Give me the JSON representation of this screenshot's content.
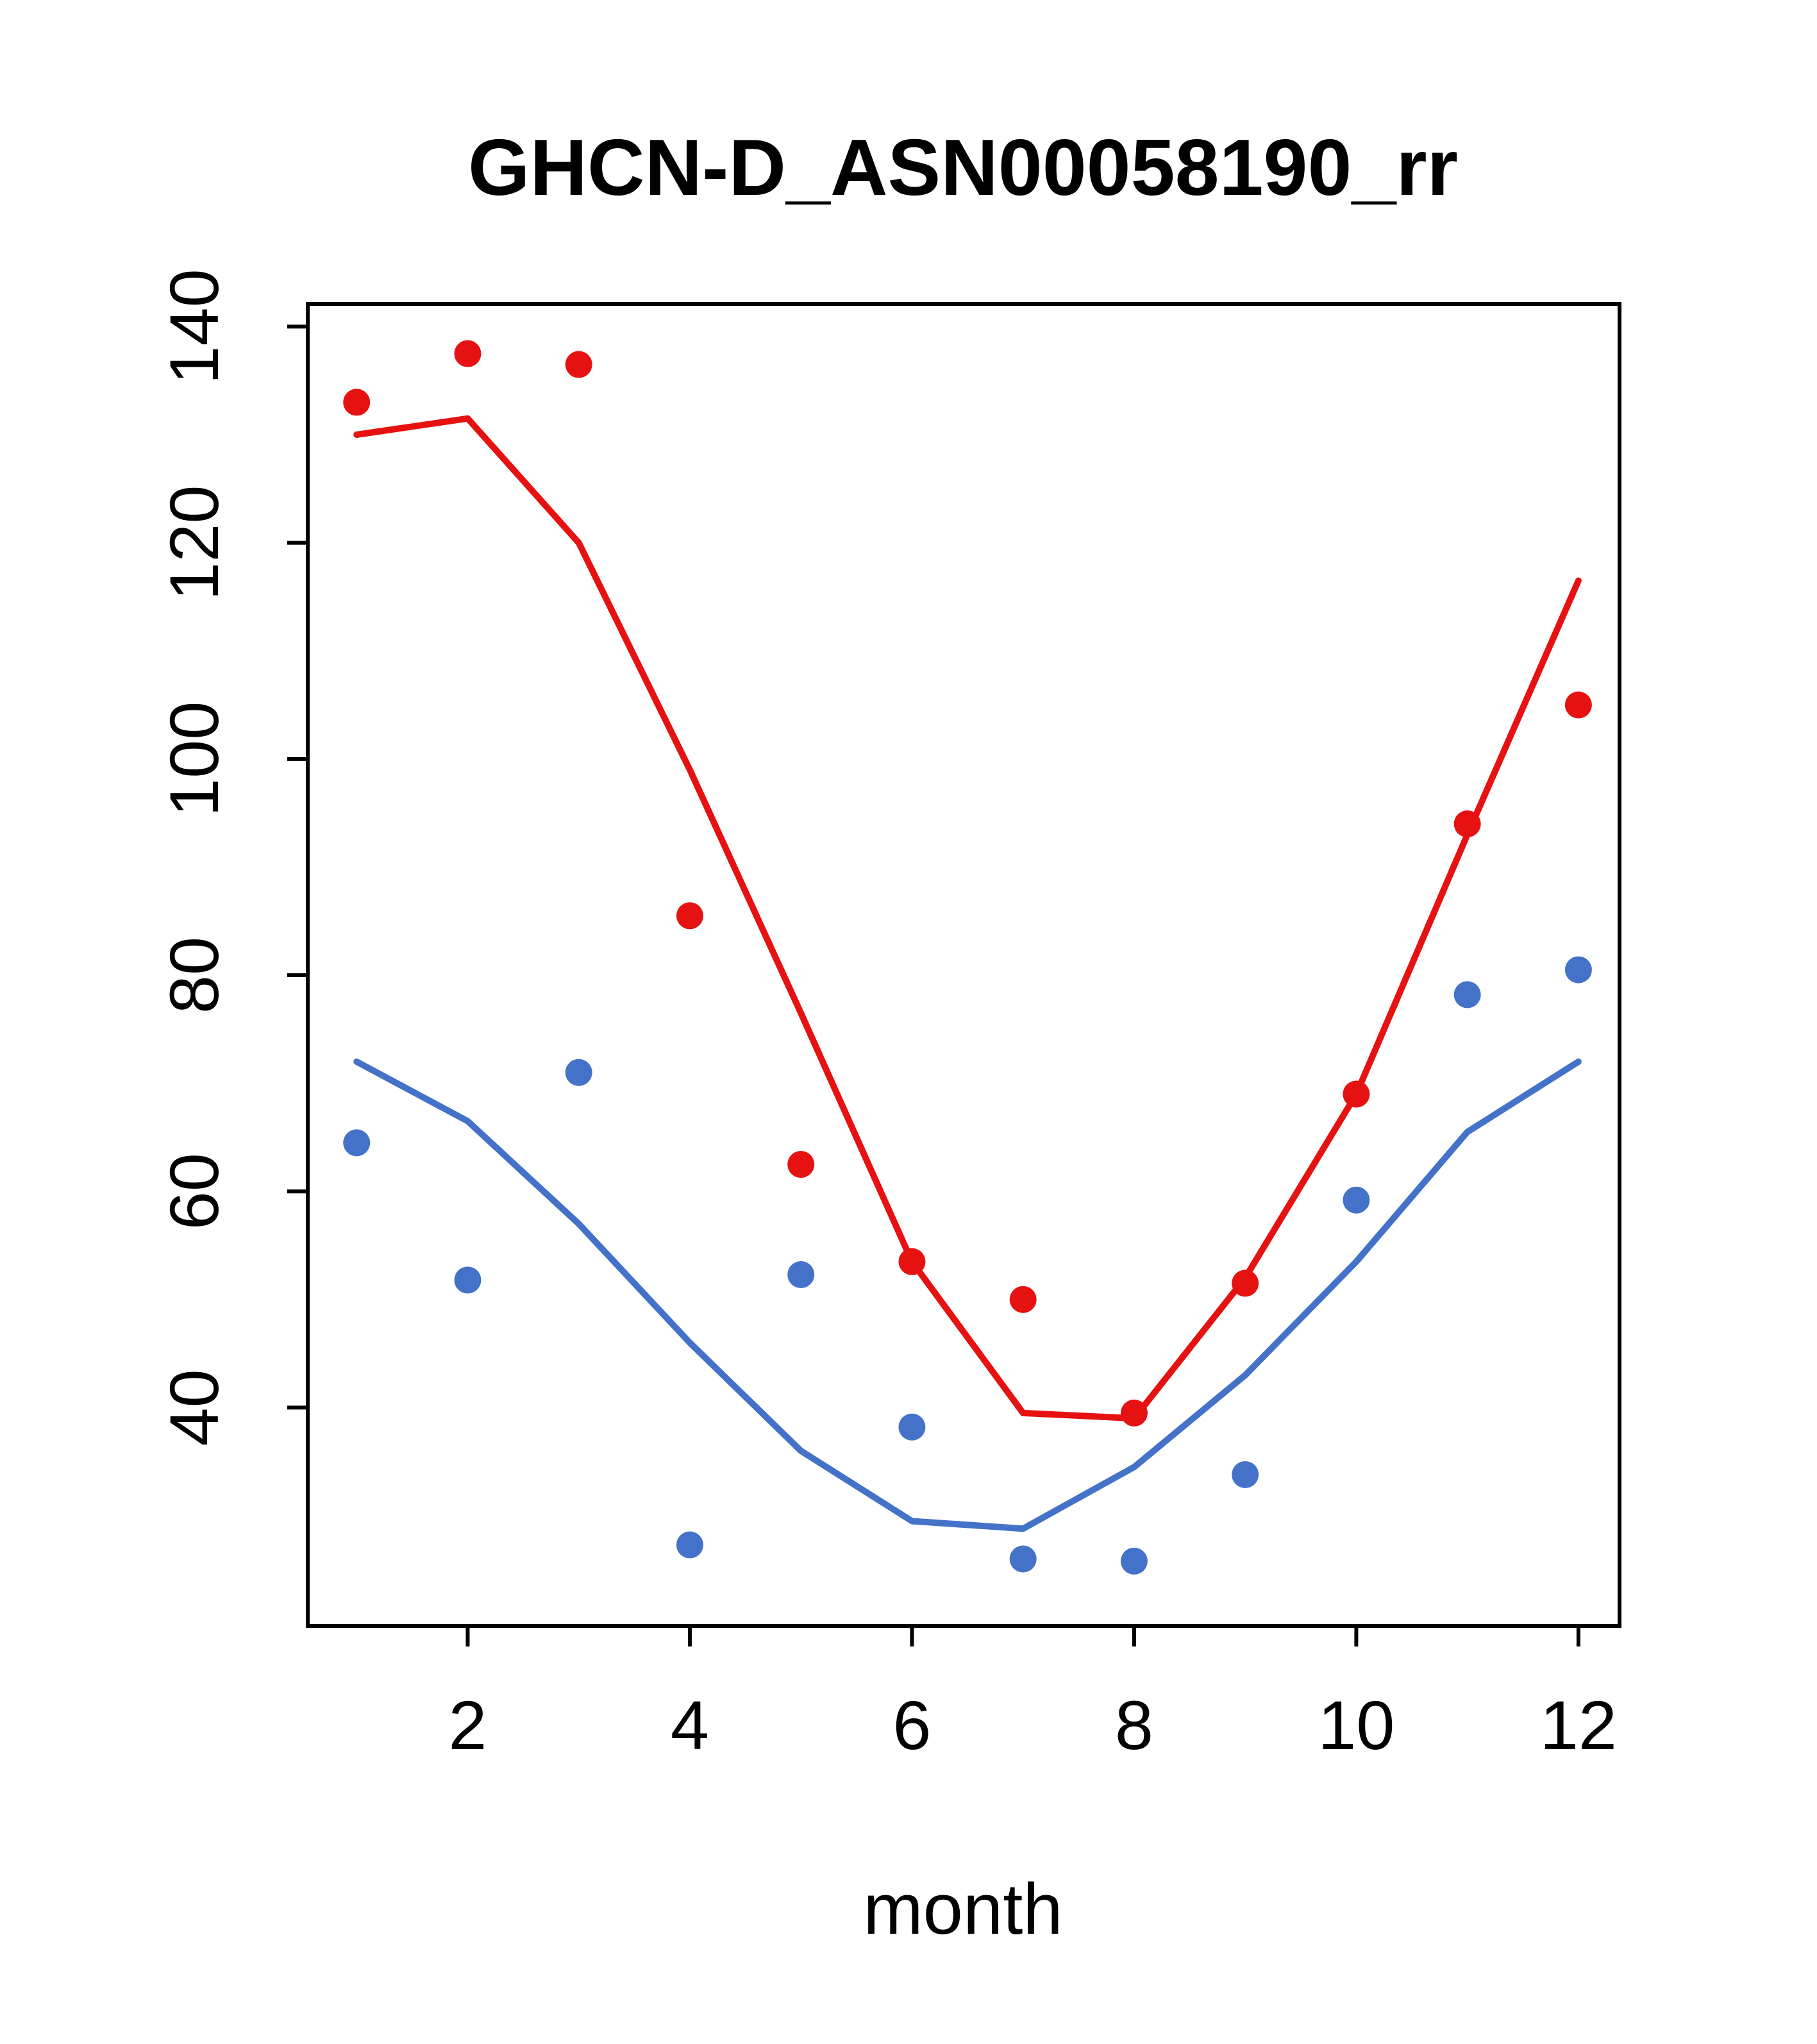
{
  "page": {
    "background": "#ffffff"
  },
  "chart_data": {
    "type": "line",
    "title": "GHCN-D_ASN00058190_rr",
    "xlabel": "month",
    "ylabel": "",
    "grid": false,
    "legend": "none",
    "x": [
      1,
      2,
      3,
      4,
      5,
      6,
      7,
      8,
      9,
      10,
      11,
      12
    ],
    "xlim": [
      0.56,
      12.37
    ],
    "ylim": [
      19.8,
      142.1
    ],
    "x_ticks": [
      2,
      4,
      6,
      8,
      10,
      12
    ],
    "y_ticks": [
      40,
      60,
      80,
      100,
      120,
      140
    ],
    "colors": {
      "red_series": "#e61212",
      "blue_series": "#4472c8",
      "axis": "#000000"
    },
    "series": [
      {
        "name": "red-line",
        "type": "line",
        "color": "#e61212",
        "values": [
          130,
          131.5,
          120,
          99,
          76.5,
          53.5,
          39.5,
          39,
          52,
          69,
          93,
          116.5
        ]
      },
      {
        "name": "red-points",
        "type": "scatter",
        "color": "#e61212",
        "values": [
          133,
          137.5,
          136.5,
          85.5,
          62.5,
          53.5,
          50,
          39.5,
          51.5,
          69,
          94,
          105
        ]
      },
      {
        "name": "blue-line",
        "type": "line",
        "color": "#4472c8",
        "values": [
          72,
          66.5,
          57,
          46,
          36,
          29.5,
          28.8,
          34.5,
          43,
          53.5,
          65.5,
          72
        ]
      },
      {
        "name": "blue-points",
        "type": "scatter",
        "color": "#4472c8",
        "values": [
          64.5,
          51.8,
          71,
          27.3,
          52.3,
          38.2,
          26,
          25.8,
          33.8,
          59.2,
          78.2,
          80.5
        ]
      }
    ]
  }
}
